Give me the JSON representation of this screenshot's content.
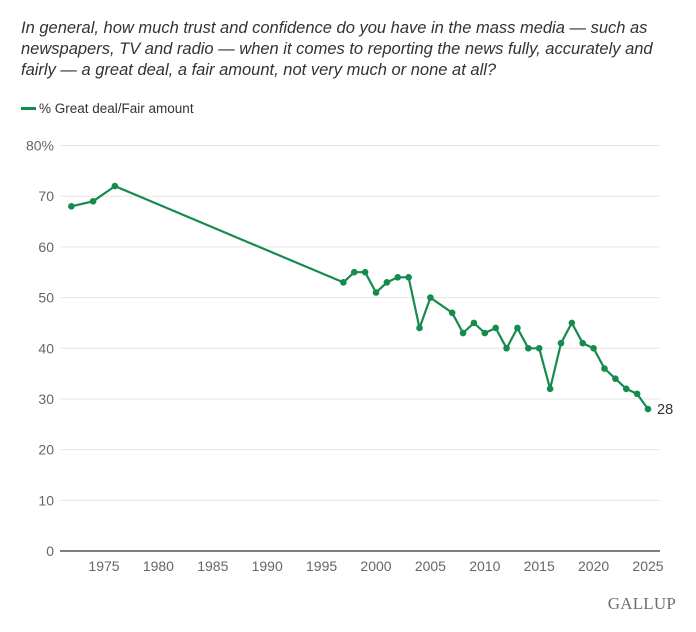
{
  "chart_data": {
    "type": "line",
    "title": "In general, how much trust and confidence do you have in the mass media — such as newspapers, TV and radio — when it comes to reporting the news fully, accurately and fairly — a great deal, a fair amount, not very much or none at all?",
    "xlabel": "",
    "ylabel": "",
    "xlim": [
      1971,
      2026
    ],
    "ylim": [
      0,
      80
    ],
    "x_ticks": [
      1975,
      1980,
      1985,
      1990,
      1995,
      2000,
      2005,
      2010,
      2015,
      2020,
      2025
    ],
    "y_ticks": [
      0,
      10,
      20,
      30,
      40,
      50,
      60,
      70,
      80
    ],
    "y_tick_labels": [
      "0",
      "10",
      "20",
      "30",
      "40",
      "50",
      "60",
      "70",
      "80%"
    ],
    "grid": true,
    "legend_position": "top-left",
    "series": [
      {
        "name": "% Great deal/Fair amount",
        "color": "#178a4d",
        "x": [
          1972,
          1974,
          1976,
          1997,
          1998,
          1999,
          2000,
          2001,
          2002,
          2003,
          2004,
          2005,
          2007,
          2008,
          2009,
          2010,
          2011,
          2012,
          2013,
          2014,
          2015,
          2016,
          2017,
          2018,
          2019,
          2020,
          2021,
          2022,
          2023,
          2024,
          2025
        ],
        "values": [
          68,
          69,
          72,
          53,
          55,
          55,
          51,
          53,
          54,
          54,
          44,
          50,
          47,
          43,
          45,
          43,
          44,
          40,
          44,
          40,
          40,
          32,
          41,
          45,
          41,
          40,
          36,
          34,
          32,
          31,
          28
        ]
      }
    ],
    "annotations": [
      {
        "x": 2025,
        "y": 28,
        "text": "28"
      }
    ]
  },
  "legend": {
    "label": "% Great deal/Fair amount"
  },
  "brand": "GALLUP"
}
